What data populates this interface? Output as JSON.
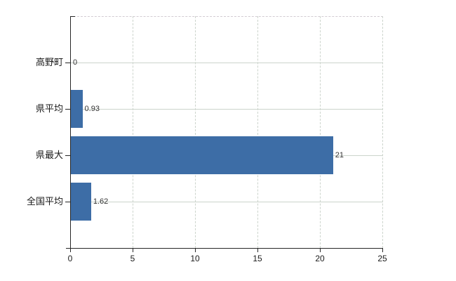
{
  "chart_data": {
    "type": "bar",
    "orientation": "horizontal",
    "title": "",
    "xlabel": "",
    "ylabel": "",
    "categories": [
      "高野町",
      "県平均",
      "県最大",
      "全国平均"
    ],
    "values": [
      0,
      0.93,
      21,
      1.62
    ],
    "value_labels": [
      "0",
      "0.93",
      "21",
      "1.62"
    ],
    "x_ticks": [
      "0",
      "5",
      "10",
      "15",
      "20",
      "25"
    ],
    "x_tick_values": [
      0,
      5,
      10,
      15,
      20,
      25
    ],
    "xlim": [
      0,
      25
    ],
    "grid": true,
    "legend": "none",
    "colors": {
      "bar": "#3d6da6",
      "h_gridline": "#ccd4cc",
      "v_gridline": "#ccd4cc",
      "axis": "#262626",
      "category_text": "#1a1a1a",
      "tick_text": "#1a1a1a",
      "value_text": "#333333",
      "background": "#ffffff"
    }
  }
}
